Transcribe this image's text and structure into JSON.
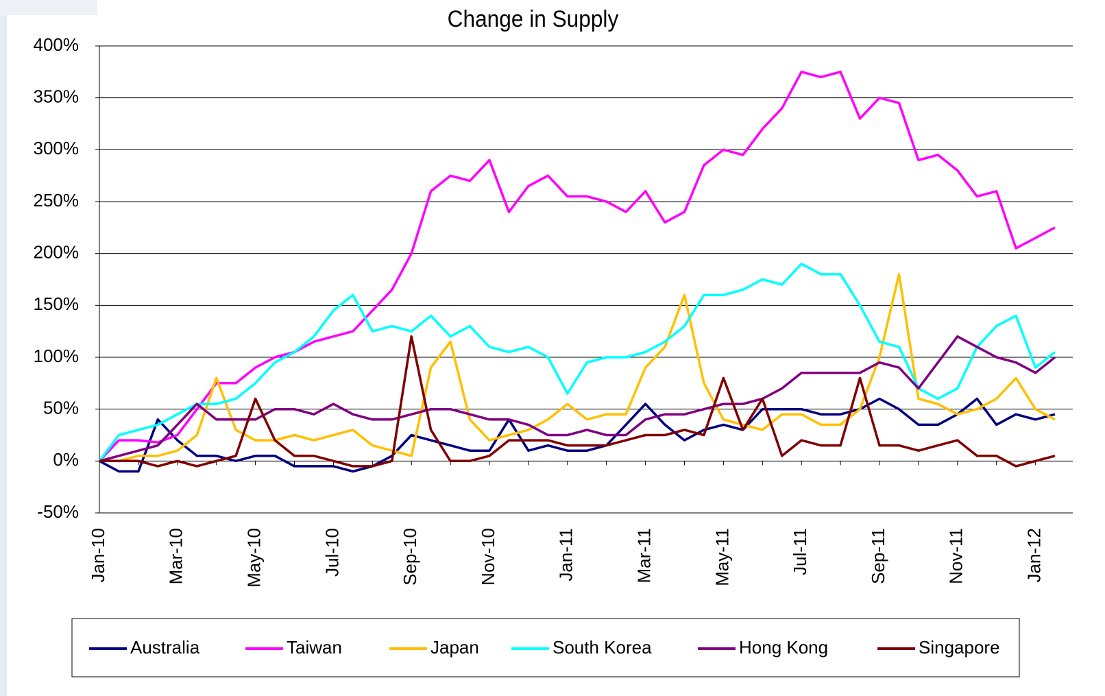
{
  "chart_data": {
    "type": "line",
    "title": "Change in Supply",
    "categories": [
      "Jan-10",
      null,
      null,
      null,
      "Mar-10",
      null,
      null,
      null,
      "May-10",
      null,
      null,
      null,
      "Jul-10",
      null,
      null,
      null,
      "Sep-10",
      null,
      null,
      null,
      "Nov-10",
      null,
      null,
      null,
      "Jan-11",
      null,
      null,
      null,
      "Mar-11",
      null,
      null,
      null,
      "May-11",
      null,
      null,
      null,
      "Jul-11",
      null,
      null,
      null,
      "Sep-11",
      null,
      null,
      null,
      "Nov-11",
      null,
      null,
      null,
      "Jan-12",
      null
    ],
    "ylim": [
      -50,
      400
    ],
    "yticks": [
      {
        "value": -50,
        "label": "-50%"
      },
      {
        "value": 0,
        "label": "0%"
      },
      {
        "value": 50,
        "label": "50%"
      },
      {
        "value": 100,
        "label": "100%"
      },
      {
        "value": 150,
        "label": "150%"
      },
      {
        "value": 200,
        "label": "200%"
      },
      {
        "value": 250,
        "label": "250%"
      },
      {
        "value": 300,
        "label": "300%"
      },
      {
        "value": 350,
        "label": "350%"
      },
      {
        "value": 400,
        "label": "400%"
      }
    ],
    "grid": true,
    "legend": "bottom",
    "series": [
      {
        "name": "Australia",
        "color": "#000080",
        "values": [
          0,
          -10,
          -10,
          40,
          20,
          5,
          5,
          0,
          5,
          5,
          -5,
          -5,
          -5,
          -10,
          -5,
          5,
          25,
          20,
          15,
          10,
          10,
          40,
          10,
          15,
          10,
          10,
          15,
          35,
          55,
          35,
          20,
          30,
          35,
          30,
          50,
          50,
          50,
          45,
          45,
          50,
          60,
          50,
          35,
          35,
          45,
          60,
          35,
          45,
          40,
          45
        ]
      },
      {
        "name": "Taiwan",
        "color": "#ff00ff",
        "values": [
          0,
          20,
          20,
          18,
          25,
          50,
          75,
          75,
          90,
          100,
          105,
          115,
          120,
          125,
          145,
          165,
          200,
          260,
          275,
          270,
          290,
          240,
          265,
          275,
          255,
          255,
          250,
          240,
          260,
          230,
          240,
          285,
          300,
          295,
          320,
          340,
          375,
          370,
          375,
          330,
          350,
          345,
          290,
          295,
          280,
          255,
          260,
          205,
          215,
          225
        ]
      },
      {
        "name": "Japan",
        "color": "#ffc000",
        "values": [
          0,
          0,
          5,
          5,
          10,
          25,
          80,
          30,
          20,
          20,
          25,
          20,
          25,
          30,
          15,
          10,
          5,
          90,
          115,
          40,
          20,
          25,
          30,
          40,
          55,
          40,
          45,
          45,
          90,
          110,
          160,
          75,
          40,
          35,
          30,
          45,
          45,
          35,
          35,
          50,
          100,
          180,
          60,
          55,
          45,
          50,
          60,
          80,
          50,
          40
        ]
      },
      {
        "name": "South Korea",
        "color": "#00ffff",
        "values": [
          0,
          25,
          30,
          35,
          45,
          55,
          55,
          60,
          75,
          95,
          105,
          120,
          145,
          160,
          125,
          130,
          125,
          140,
          120,
          130,
          110,
          105,
          110,
          100,
          65,
          95,
          100,
          100,
          105,
          115,
          130,
          160,
          160,
          165,
          175,
          170,
          190,
          180,
          180,
          150,
          115,
          110,
          70,
          60,
          70,
          110,
          130,
          140,
          90,
          105
        ]
      },
      {
        "name": "Hong Kong",
        "color": "#800080",
        "values": [
          0,
          5,
          10,
          15,
          35,
          55,
          40,
          40,
          40,
          50,
          50,
          45,
          55,
          45,
          40,
          40,
          45,
          50,
          50,
          45,
          40,
          40,
          35,
          25,
          25,
          30,
          25,
          25,
          40,
          45,
          45,
          50,
          55,
          55,
          60,
          70,
          85,
          85,
          85,
          85,
          95,
          90,
          70,
          95,
          120,
          110,
          100,
          95,
          85,
          100
        ]
      },
      {
        "name": "Singapore",
        "color": "#800000",
        "values": [
          0,
          0,
          0,
          -5,
          0,
          -5,
          0,
          5,
          60,
          20,
          5,
          5,
          0,
          -5,
          -5,
          0,
          120,
          30,
          0,
          0,
          5,
          20,
          20,
          20,
          15,
          15,
          15,
          20,
          25,
          25,
          30,
          25,
          80,
          30,
          60,
          5,
          20,
          15,
          15,
          80,
          15,
          15,
          10,
          15,
          20,
          5,
          5,
          -5,
          0,
          5
        ]
      }
    ]
  }
}
